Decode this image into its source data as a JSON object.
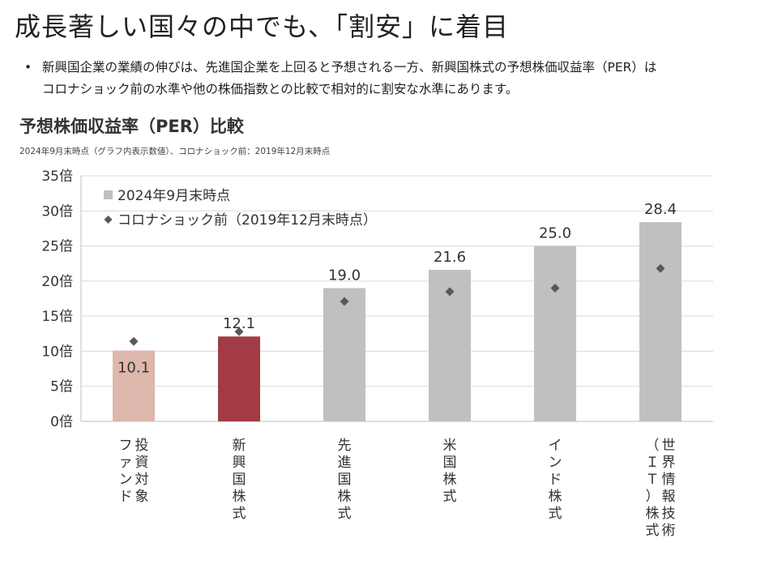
{
  "page": {
    "title": "成長著しい国々の中でも、「割安」に着目",
    "bullet_lines": [
      "新興国企業の業績の伸びは、先進国企業を上回ると予想される一方、新興国株式の予想株価収益率（PER）は",
      "コロナショック前の水準や他の株価指数との比較で相対的に割安な水準にあります。"
    ],
    "bullet_mark": "•"
  },
  "chart_data": {
    "type": "bar",
    "title": "予想株価収益率（PER）比較",
    "note": "2024年9月末時点（グラフ内表示数値）、コロナショック前：2019年12月末時点",
    "categories": [
      "投資対象ファンド",
      "新興国株式",
      "先進国株式",
      "米国株式",
      "インド株式",
      "世界情報技術（ＩＴ）株式"
    ],
    "category_columns": [
      [
        "投資対象",
        "ファンド"
      ],
      [
        "新興国株式"
      ],
      [
        "先進国株式"
      ],
      [
        "米国株式"
      ],
      [
        "インド株式"
      ],
      [
        "世界情報技術",
        "（ＩＴ）株式"
      ]
    ],
    "series": [
      {
        "name": "2024年9月末時点",
        "marker": "square",
        "values": [
          10.1,
          12.1,
          19.0,
          21.6,
          25.0,
          28.4
        ],
        "labels": [
          "10.1",
          "12.1",
          "19.0",
          "21.6",
          "25.0",
          "28.4"
        ]
      },
      {
        "name": "コロナショック前（2019年12月末時点）",
        "marker": "diamond",
        "values": [
          11.4,
          12.8,
          17.1,
          18.5,
          19.0,
          21.8
        ]
      }
    ],
    "bar_colors": [
      "#deb7ad",
      "#a33b44",
      "#c0c0c0",
      "#c0c0c0",
      "#c0c0c0",
      "#c0c0c0"
    ],
    "marker_color": "#595959",
    "legend_square_color": "#bfbfbf",
    "yticks": [
      "0倍",
      "5倍",
      "10倍",
      "15倍",
      "20倍",
      "25倍",
      "30倍",
      "35倍"
    ],
    "ylim": [
      0,
      35
    ],
    "grid": true,
    "legend_position": "top-left"
  }
}
